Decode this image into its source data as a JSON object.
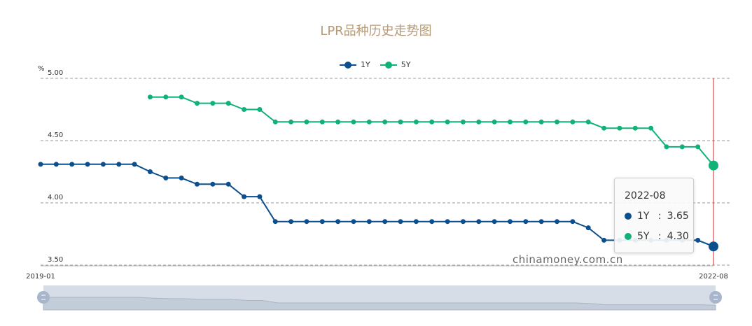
{
  "chart_data": {
    "type": "line",
    "title": "LPR品种历史走势图",
    "ylabel": "%",
    "ylim": [
      3.5,
      5.0
    ],
    "yticks": [
      "3.50",
      "4.00",
      "4.50",
      "5.00"
    ],
    "x_start_label": "2019-01",
    "x_end_label": "2022-08",
    "grid": true,
    "legend_position": "top",
    "x": [
      "2019-01",
      "2019-02",
      "2019-03",
      "2019-04",
      "2019-05",
      "2019-06",
      "2019-07",
      "2019-08",
      "2019-09",
      "2019-10",
      "2019-11",
      "2019-12",
      "2020-01",
      "2020-02",
      "2020-03",
      "2020-04",
      "2020-05",
      "2020-06",
      "2020-07",
      "2020-08",
      "2020-09",
      "2020-10",
      "2020-11",
      "2020-12",
      "2021-01",
      "2021-02",
      "2021-03",
      "2021-04",
      "2021-05",
      "2021-06",
      "2021-07",
      "2021-08",
      "2021-09",
      "2021-10",
      "2021-11",
      "2021-12",
      "2022-01",
      "2022-02",
      "2022-03",
      "2022-04",
      "2022-05",
      "2022-06",
      "2022-07",
      "2022-08"
    ],
    "series": [
      {
        "name": "1Y",
        "color": "#0b4f8e",
        "values": [
          4.31,
          4.31,
          4.31,
          4.31,
          4.31,
          4.31,
          4.31,
          4.25,
          4.2,
          4.2,
          4.15,
          4.15,
          4.15,
          4.05,
          4.05,
          3.85,
          3.85,
          3.85,
          3.85,
          3.85,
          3.85,
          3.85,
          3.85,
          3.85,
          3.85,
          3.85,
          3.85,
          3.85,
          3.85,
          3.85,
          3.85,
          3.85,
          3.85,
          3.85,
          3.85,
          3.8,
          3.7,
          3.7,
          3.7,
          3.7,
          3.7,
          3.7,
          3.7,
          3.65
        ]
      },
      {
        "name": "5Y",
        "color": "#10b277",
        "values": [
          null,
          null,
          null,
          null,
          null,
          null,
          null,
          4.85,
          4.85,
          4.85,
          4.8,
          4.8,
          4.8,
          4.75,
          4.75,
          4.65,
          4.65,
          4.65,
          4.65,
          4.65,
          4.65,
          4.65,
          4.65,
          4.65,
          4.65,
          4.65,
          4.65,
          4.65,
          4.65,
          4.65,
          4.65,
          4.65,
          4.65,
          4.65,
          4.65,
          4.65,
          4.6,
          4.6,
          4.6,
          4.6,
          4.45,
          4.45,
          4.45,
          4.3
        ]
      }
    ],
    "tooltip": {
      "date": "2022-08",
      "rows": [
        {
          "label": "1Y",
          "value": "3.65"
        },
        {
          "label": "5Y",
          "value": "4.30"
        }
      ]
    }
  },
  "watermark": "chinamoney.com.cn",
  "colors": {
    "axis_line": "#999999",
    "grid": "#999999",
    "highlight_line": "#e02020",
    "slider_bg": "#d7dde7",
    "slider_handle": "#a7b6cc"
  }
}
